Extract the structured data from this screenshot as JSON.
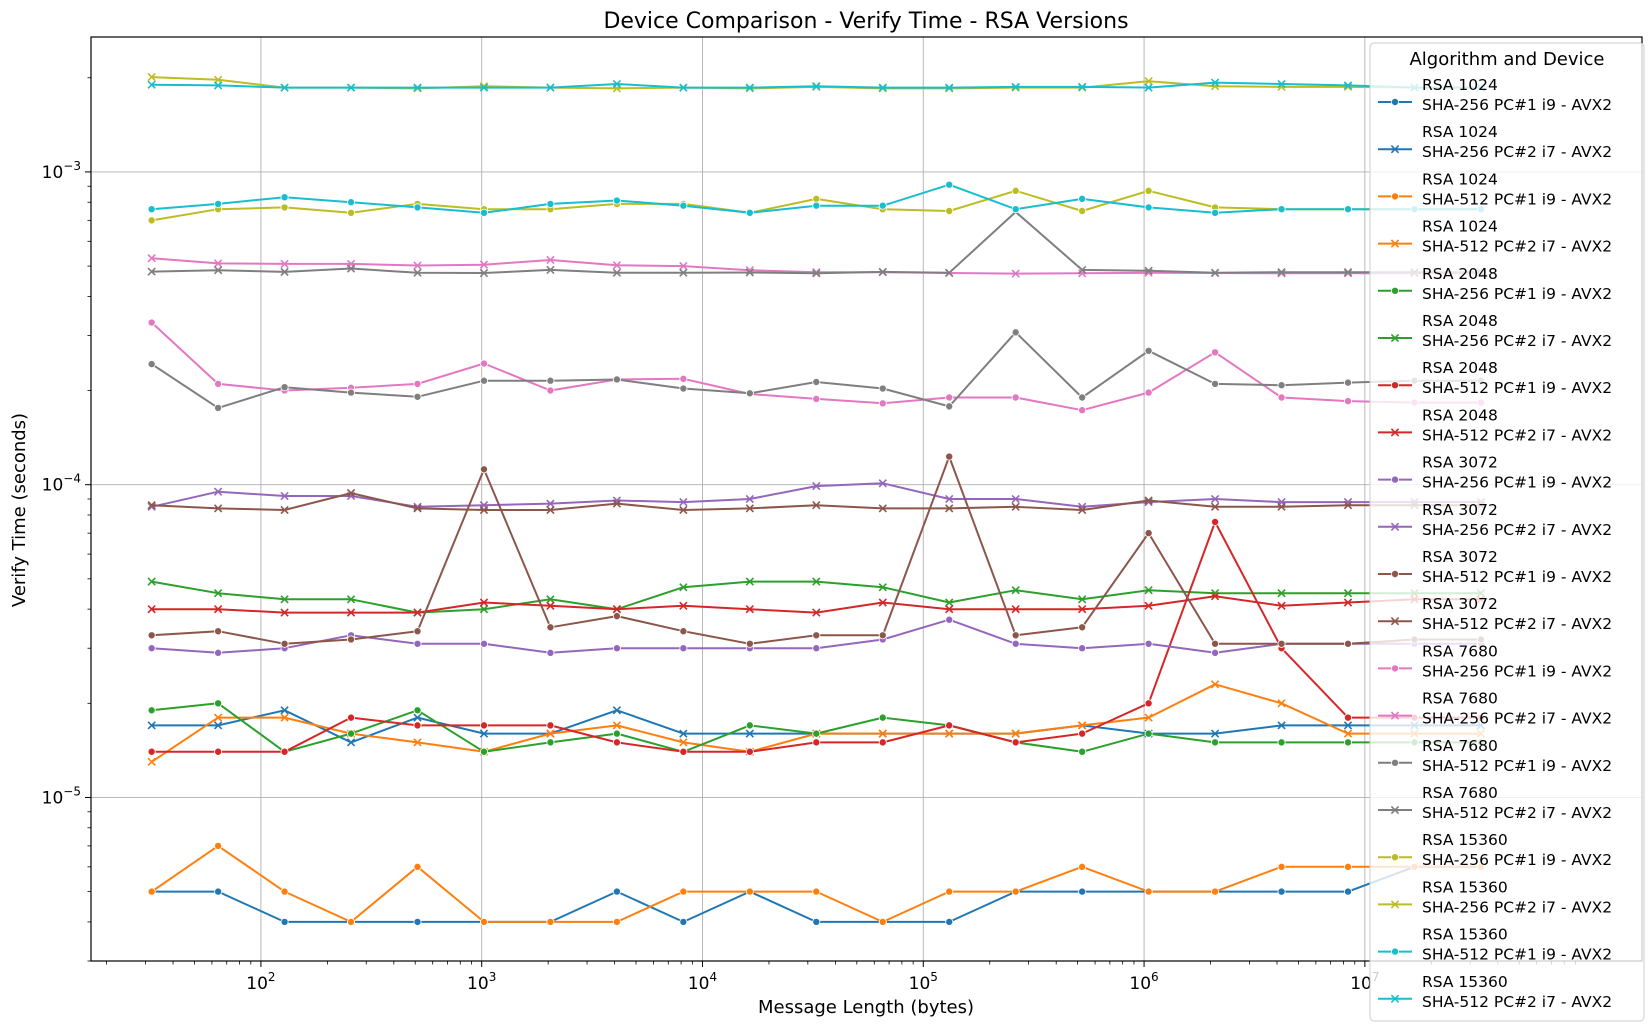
{
  "chart_data": {
    "type": "line",
    "title": "Device Comparison - Verify Time - RSA Versions",
    "xlabel": "Message Length (bytes)",
    "ylabel": "Verify Time (seconds)",
    "xscale": "log",
    "yscale": "log",
    "xlim": [
      17,
      180000000
    ],
    "ylim": [
      3e-06,
      0.0027
    ],
    "x_ticks": [
      {
        "value": 100,
        "label": "10^2"
      },
      {
        "value": 1000,
        "label": "10^3"
      },
      {
        "value": 10000,
        "label": "10^4"
      },
      {
        "value": 100000,
        "label": "10^5"
      },
      {
        "value": 1000000,
        "label": "10^6"
      },
      {
        "value": 10000000,
        "label": "10^7"
      }
    ],
    "y_ticks": [
      {
        "value": 1e-05,
        "label": "10^-5"
      },
      {
        "value": 0.0001,
        "label": "10^-4"
      },
      {
        "value": 0.001,
        "label": "10^-3"
      }
    ],
    "grid": true,
    "legend_title": "Algorithm and Device",
    "legend_position": "upper right",
    "x": [
      32,
      64,
      128,
      256,
      512,
      1024,
      2048,
      4096,
      8192,
      16384,
      32768,
      65536,
      131072,
      262144,
      524288,
      1048576,
      2097152,
      4194304,
      8388608,
      16777216,
      33554432
    ],
    "series": [
      {
        "name": "RSA 1024\nSHA-256 PC#1 i9 - AVX2",
        "color": "#1f77b4",
        "marker": "circle",
        "values": [
          5e-06,
          5e-06,
          4e-06,
          4e-06,
          4e-06,
          4e-06,
          4e-06,
          5e-06,
          4e-06,
          5e-06,
          4e-06,
          4e-06,
          4e-06,
          5e-06,
          5e-06,
          5e-06,
          5e-06,
          5e-06,
          5e-06,
          6e-06,
          6e-06
        ]
      },
      {
        "name": "RSA 1024\nSHA-256 PC#2 i7 - AVX2",
        "color": "#1f77b4",
        "marker": "x",
        "values": [
          1.7e-05,
          1.7e-05,
          1.9e-05,
          1.5e-05,
          1.8e-05,
          1.6e-05,
          1.6e-05,
          1.9e-05,
          1.6e-05,
          1.6e-05,
          1.6e-05,
          1.6e-05,
          1.6e-05,
          1.6e-05,
          1.7e-05,
          1.6e-05,
          1.6e-05,
          1.7e-05,
          1.7e-05,
          1.7e-05,
          1.7e-05
        ]
      },
      {
        "name": "RSA 1024\nSHA-512 PC#1 i9 - AVX2",
        "color": "#ff7f0e",
        "marker": "circle",
        "values": [
          5e-06,
          7e-06,
          5e-06,
          4e-06,
          6e-06,
          4e-06,
          4e-06,
          4e-06,
          5e-06,
          5e-06,
          5e-06,
          4e-06,
          5e-06,
          5e-06,
          6e-06,
          5e-06,
          5e-06,
          6e-06,
          6e-06,
          6e-06,
          6e-06
        ]
      },
      {
        "name": "RSA 1024\nSHA-512 PC#2 i7 - AVX2",
        "color": "#ff7f0e",
        "marker": "x",
        "values": [
          1.3e-05,
          1.8e-05,
          1.8e-05,
          1.6e-05,
          1.5e-05,
          1.4e-05,
          1.6e-05,
          1.7e-05,
          1.5e-05,
          1.4e-05,
          1.6e-05,
          1.6e-05,
          1.6e-05,
          1.6e-05,
          1.7e-05,
          1.8e-05,
          2.3e-05,
          2e-05,
          1.6e-05,
          1.6e-05,
          1.6e-05
        ]
      },
      {
        "name": "RSA 2048\nSHA-256 PC#1 i9 - AVX2",
        "color": "#2ca02c",
        "marker": "circle",
        "values": [
          1.9e-05,
          2e-05,
          1.4e-05,
          1.6e-05,
          1.9e-05,
          1.4e-05,
          1.5e-05,
          1.6e-05,
          1.4e-05,
          1.7e-05,
          1.6e-05,
          1.8e-05,
          1.7e-05,
          1.5e-05,
          1.4e-05,
          1.6e-05,
          1.5e-05,
          1.5e-05,
          1.5e-05,
          1.5e-05,
          1.5e-05
        ]
      },
      {
        "name": "RSA 2048\nSHA-256 PC#2 i7 - AVX2",
        "color": "#2ca02c",
        "marker": "x",
        "values": [
          4.9e-05,
          4.5e-05,
          4.3e-05,
          4.3e-05,
          3.9e-05,
          4e-05,
          4.3e-05,
          4e-05,
          4.7e-05,
          4.9e-05,
          4.9e-05,
          4.7e-05,
          4.2e-05,
          4.6e-05,
          4.3e-05,
          4.6e-05,
          4.5e-05,
          4.5e-05,
          4.5e-05,
          4.5e-05,
          4.5e-05
        ]
      },
      {
        "name": "RSA 2048\nSHA-512 PC#1 i9 - AVX2",
        "color": "#d62728",
        "marker": "circle",
        "values": [
          1.4e-05,
          1.4e-05,
          1.4e-05,
          1.8e-05,
          1.7e-05,
          1.7e-05,
          1.7e-05,
          1.5e-05,
          1.4e-05,
          1.4e-05,
          1.5e-05,
          1.5e-05,
          1.7e-05,
          1.5e-05,
          1.6e-05,
          2e-05,
          7.6e-05,
          3e-05,
          1.8e-05,
          1.8e-05,
          1.8e-05
        ]
      },
      {
        "name": "RSA 2048\nSHA-512 PC#2 i7 - AVX2",
        "color": "#d62728",
        "marker": "x",
        "values": [
          4e-05,
          4e-05,
          3.9e-05,
          3.9e-05,
          3.9e-05,
          4.2e-05,
          4.1e-05,
          4e-05,
          4.1e-05,
          4e-05,
          3.9e-05,
          4.2e-05,
          4e-05,
          4e-05,
          4e-05,
          4.1e-05,
          4.4e-05,
          4.1e-05,
          4.2e-05,
          4.3e-05,
          4.3e-05
        ]
      },
      {
        "name": "RSA 3072\nSHA-256 PC#1 i9 - AVX2",
        "color": "#9467bd",
        "marker": "circle",
        "values": [
          3e-05,
          2.9e-05,
          3e-05,
          3.3e-05,
          3.1e-05,
          3.1e-05,
          2.9e-05,
          3e-05,
          3e-05,
          3e-05,
          3e-05,
          3.2e-05,
          3.7e-05,
          3.1e-05,
          3e-05,
          3.1e-05,
          2.9e-05,
          3.1e-05,
          3.1e-05,
          3.1e-05,
          3.1e-05
        ]
      },
      {
        "name": "RSA 3072\nSHA-256 PC#2 i7 - AVX2",
        "color": "#9467bd",
        "marker": "x",
        "values": [
          8.5e-05,
          9.5e-05,
          9.2e-05,
          9.2e-05,
          8.5e-05,
          8.6e-05,
          8.7e-05,
          8.9e-05,
          8.8e-05,
          9e-05,
          9.9e-05,
          0.000101,
          9e-05,
          9e-05,
          8.5e-05,
          8.8e-05,
          9e-05,
          8.8e-05,
          8.8e-05,
          8.8e-05,
          8.8e-05
        ]
      },
      {
        "name": "RSA 3072\nSHA-512 PC#1 i9 - AVX2",
        "color": "#8c564b",
        "marker": "circle",
        "values": [
          3.3e-05,
          3.4e-05,
          3.1e-05,
          3.2e-05,
          3.4e-05,
          0.000112,
          3.5e-05,
          3.8e-05,
          3.4e-05,
          3.1e-05,
          3.3e-05,
          3.3e-05,
          0.000123,
          3.3e-05,
          3.5e-05,
          7e-05,
          3.1e-05,
          3.1e-05,
          3.1e-05,
          3.2e-05,
          3.2e-05
        ]
      },
      {
        "name": "RSA 3072\nSHA-512 PC#2 i7 - AVX2",
        "color": "#8c564b",
        "marker": "x",
        "values": [
          8.6e-05,
          8.4e-05,
          8.3e-05,
          9.4e-05,
          8.4e-05,
          8.3e-05,
          8.3e-05,
          8.7e-05,
          8.3e-05,
          8.4e-05,
          8.6e-05,
          8.4e-05,
          8.4e-05,
          8.5e-05,
          8.3e-05,
          8.9e-05,
          8.5e-05,
          8.5e-05,
          8.6e-05,
          8.6e-05,
          8.6e-05
        ]
      },
      {
        "name": "RSA 7680\nSHA-256 PC#1 i9 - AVX2",
        "color": "#e377c2",
        "marker": "circle",
        "values": [
          0.00033,
          0.00021,
          0.0002,
          0.000204,
          0.00021,
          0.000244,
          0.0002,
          0.000217,
          0.000218,
          0.000195,
          0.000188,
          0.000182,
          0.00019,
          0.00019,
          0.000173,
          0.000197,
          0.000265,
          0.00019,
          0.000185,
          0.000183,
          0.000183
        ]
      },
      {
        "name": "RSA 7680\nSHA-256 PC#2 i7 - AVX2",
        "color": "#e377c2",
        "marker": "x",
        "values": [
          0.00053,
          0.00051,
          0.000508,
          0.000508,
          0.000502,
          0.000505,
          0.000523,
          0.000503,
          0.0005,
          0.000485,
          0.000478,
          0.000478,
          0.000475,
          0.000473,
          0.000474,
          0.000476,
          0.000475,
          0.000474,
          0.000474,
          0.000474,
          0.000474
        ]
      },
      {
        "name": "RSA 7680\nSHA-512 PC#1 i9 - AVX2",
        "color": "#7f7f7f",
        "marker": "circle",
        "values": [
          0.000243,
          0.000176,
          0.000205,
          0.000197,
          0.000191,
          0.000215,
          0.000215,
          0.000217,
          0.000203,
          0.000196,
          0.000213,
          0.000203,
          0.000178,
          0.000307,
          0.00019,
          0.000268,
          0.00021,
          0.000208,
          0.000212,
          0.000215,
          0.000215
        ]
      },
      {
        "name": "RSA 7680\nSHA-512 PC#2 i7 - AVX2",
        "color": "#7f7f7f",
        "marker": "x",
        "values": [
          0.00048,
          0.000485,
          0.000479,
          0.000491,
          0.000476,
          0.000475,
          0.000486,
          0.000476,
          0.000476,
          0.000477,
          0.000474,
          0.000479,
          0.000476,
          0.000745,
          0.000486,
          0.000483,
          0.000476,
          0.000478,
          0.000478,
          0.000478,
          0.000478
        ]
      },
      {
        "name": "RSA 15360\nSHA-256 PC#1 i9 - AVX2",
        "color": "#bcbd22",
        "marker": "circle",
        "values": [
          0.0007,
          0.00076,
          0.00077,
          0.00074,
          0.00079,
          0.00076,
          0.00076,
          0.00079,
          0.00079,
          0.00074,
          0.00082,
          0.00076,
          0.00075,
          0.00087,
          0.00075,
          0.00087,
          0.00077,
          0.00076,
          0.00076,
          0.00076,
          0.00076
        ]
      },
      {
        "name": "RSA 15360\nSHA-256 PC#2 i7 - AVX2",
        "color": "#bcbd22",
        "marker": "x",
        "values": [
          0.00201,
          0.00197,
          0.00186,
          0.00186,
          0.00185,
          0.00188,
          0.00186,
          0.00185,
          0.00186,
          0.00185,
          0.00187,
          0.00185,
          0.00185,
          0.00186,
          0.00186,
          0.00195,
          0.00188,
          0.00187,
          0.00187,
          0.00186,
          0.00186
        ]
      },
      {
        "name": "RSA 15360\nSHA-512 PC#1 i9 - AVX2",
        "color": "#17becf",
        "marker": "circle",
        "values": [
          0.00076,
          0.00079,
          0.00083,
          0.0008,
          0.00077,
          0.00074,
          0.00079,
          0.00081,
          0.00078,
          0.00074,
          0.00078,
          0.00078,
          0.00091,
          0.00076,
          0.00082,
          0.00077,
          0.00074,
          0.00076,
          0.00076,
          0.00076,
          0.00076
        ]
      },
      {
        "name": "RSA 15360\nSHA-512 PC#2 i7 - AVX2",
        "color": "#17becf",
        "marker": "x",
        "values": [
          0.0019,
          0.00189,
          0.00186,
          0.00186,
          0.00186,
          0.00186,
          0.00186,
          0.00191,
          0.00186,
          0.00186,
          0.00188,
          0.00186,
          0.00186,
          0.00187,
          0.00187,
          0.00186,
          0.00193,
          0.00191,
          0.00189,
          0.00186,
          0.00186
        ]
      }
    ]
  }
}
